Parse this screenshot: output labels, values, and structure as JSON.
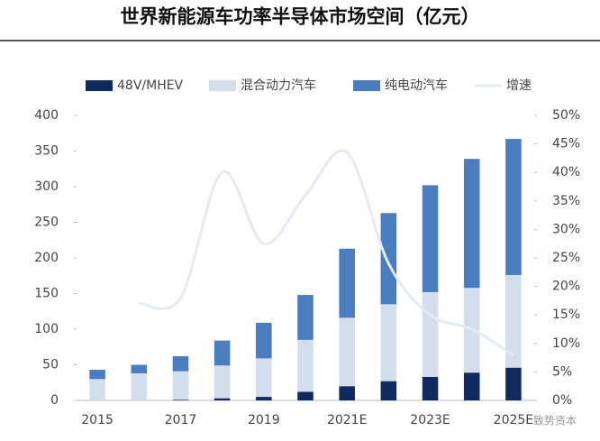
{
  "chart_data": {
    "type": "bar",
    "title": "世界新能源车功率半导体市场空间（亿元）",
    "categories": [
      "2015",
      null,
      "2017",
      null,
      "2019",
      null,
      "2021E",
      null,
      "2023E",
      null,
      "2025E"
    ],
    "series": [
      {
        "name": "48V/MHEV",
        "color": "#0e2a5e",
        "values": [
          0,
          0,
          1,
          3,
          5,
          12,
          20,
          27,
          33,
          39,
          46
        ]
      },
      {
        "name": "混合动力汽车",
        "color": "#d3deed",
        "values": [
          30,
          38,
          40,
          46,
          54,
          73,
          96,
          108,
          119,
          119,
          130
        ]
      },
      {
        "name": "纯电动汽车",
        "color": "#4a7cc0",
        "values": [
          13,
          12,
          21,
          35,
          50,
          63,
          97,
          128,
          150,
          181,
          191
        ]
      },
      {
        "name": "增速",
        "color": "#e4eaf4",
        "type": "line",
        "axis": "y2",
        "values": [
          null,
          17,
          18,
          40,
          27.5,
          36,
          43.5,
          24,
          15,
          12.5,
          8
        ]
      }
    ],
    "ylim": [
      0,
      400
    ],
    "yticks": [
      0,
      50,
      100,
      150,
      200,
      250,
      300,
      350,
      400
    ],
    "y2lim": [
      0,
      50
    ],
    "y2ticks": [
      {
        "value": 0,
        "label": "0%"
      },
      {
        "value": 5,
        "label": "5%"
      },
      {
        "value": 10,
        "label": "10%"
      },
      {
        "value": 15,
        "label": "15%"
      },
      {
        "value": 20,
        "label": "20%"
      },
      {
        "value": 25,
        "label": "25%"
      },
      {
        "value": 30,
        "label": "30%"
      },
      {
        "value": 35,
        "label": "35%"
      },
      {
        "value": 40,
        "label": "40%"
      },
      {
        "value": 45,
        "label": "45%"
      },
      {
        "value": 50,
        "label": "50%"
      }
    ],
    "legend": "top",
    "watermark": "致势资本"
  }
}
